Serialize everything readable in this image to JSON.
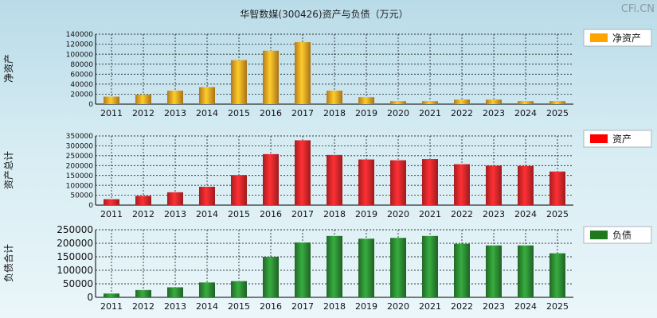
{
  "title": "华智数媒(300426)资产与负债（万元）",
  "watermark": "CFi.CN",
  "colors": {
    "net_assets": "#f0a322",
    "assets": "#e0262a",
    "liabilities": "#2c8a33",
    "legend_net_assets": "#ffa500",
    "legend_assets": "#ff0000",
    "legend_liabilities": "#1f7a1f"
  },
  "chart_data": [
    {
      "type": "bar",
      "ylabel": "净资产",
      "legend": "净资产",
      "categories": [
        "2011",
        "2012",
        "2013",
        "2014",
        "2015",
        "2016",
        "2017",
        "2018",
        "2019",
        "2020",
        "2021",
        "2022",
        "2023",
        "2024",
        "2025"
      ],
      "values": [
        15000,
        19000,
        27000,
        34000,
        88000,
        107000,
        124000,
        27000,
        14000,
        6000,
        6000,
        9000,
        9000,
        6000,
        6000
      ],
      "yticks": [
        0,
        20000,
        40000,
        60000,
        80000,
        100000,
        120000,
        140000
      ],
      "ylim": [
        0,
        140000
      ],
      "grid": true,
      "legend_position": "right"
    },
    {
      "type": "bar",
      "ylabel": "资产总计",
      "legend": "资产",
      "categories": [
        "2011",
        "2012",
        "2013",
        "2014",
        "2015",
        "2016",
        "2017",
        "2018",
        "2019",
        "2020",
        "2021",
        "2022",
        "2023",
        "2024",
        "2025"
      ],
      "values": [
        30000,
        47000,
        65000,
        93000,
        152000,
        258000,
        328000,
        254000,
        231000,
        227000,
        233000,
        207000,
        200000,
        198000,
        170000
      ],
      "yticks": [
        0,
        50000,
        100000,
        150000,
        200000,
        250000,
        300000,
        350000
      ],
      "ylim": [
        0,
        350000
      ],
      "grid": true,
      "legend_position": "right"
    },
    {
      "type": "bar",
      "ylabel": "负债合计",
      "legend": "负债",
      "categories": [
        "2011",
        "2012",
        "2013",
        "2014",
        "2015",
        "2016",
        "2017",
        "2018",
        "2019",
        "2020",
        "2021",
        "2022",
        "2023",
        "2024",
        "2025"
      ],
      "values": [
        14000,
        27000,
        37000,
        55000,
        60000,
        150000,
        203000,
        227000,
        217000,
        220000,
        227000,
        198000,
        192000,
        192000,
        163000
      ],
      "yticks": [
        0,
        50000,
        100000,
        150000,
        200000,
        250000
      ],
      "ylim": [
        0,
        250000
      ],
      "grid": true,
      "legend_position": "right"
    }
  ]
}
